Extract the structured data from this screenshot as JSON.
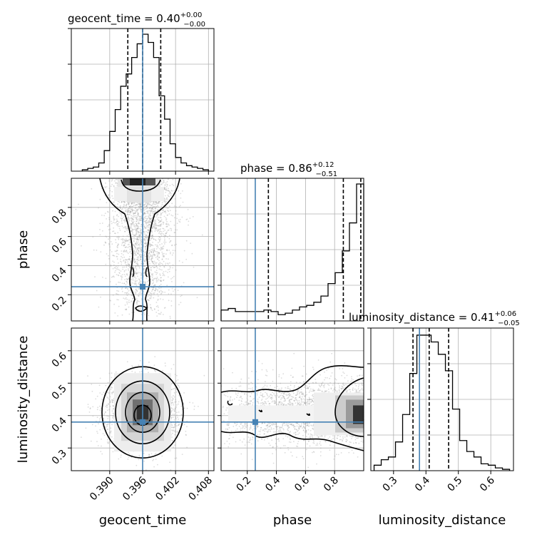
{
  "chart_data": {
    "type": "corner",
    "parameters": [
      "geocent_time",
      "phase",
      "luminosity_distance"
    ],
    "truths": {
      "geocent_time": 0.396,
      "phase": 0.255,
      "luminosity_distance": 0.38
    },
    "colors": {
      "truth": "#4682b4",
      "hist": "#000000",
      "grid": "#b0b0b0",
      "points": "#9a9a9a"
    },
    "titles": [
      {
        "param": "geocent_time",
        "base": "geocent_time = 0.40",
        "sup": "+0.00",
        "sub": "−0.00"
      },
      {
        "param": "phase",
        "base": "phase = 0.86",
        "sup": "+0.12",
        "sub": "−0.51"
      },
      {
        "param": "luminosity_distance",
        "base": "luminosity_distance = 0.41",
        "sup": "+0.06",
        "sub": "−0.05"
      }
    ],
    "quantiles": {
      "geocent_time": [
        0.3933,
        0.396,
        0.3993
      ],
      "phase": [
        0.345,
        0.86,
        0.98
      ],
      "luminosity_distance": [
        0.36,
        0.41,
        0.47
      ]
    },
    "axes": {
      "geocent_time": {
        "range": [
          0.383,
          0.409
        ],
        "ticks": [
          0.39,
          0.396,
          0.402,
          0.408
        ],
        "tick_labels": [
          "0.390",
          "0.396",
          "0.402",
          "0.408"
        ]
      },
      "phase": {
        "range": [
          0.02,
          1.0
        ],
        "ticks": [
          0.2,
          0.4,
          0.6,
          0.8
        ],
        "tick_labels": [
          "0.2",
          "0.4",
          "0.6",
          "0.8"
        ]
      },
      "luminosity_distance": {
        "range": [
          0.23,
          0.67
        ],
        "ticks": [
          0.3,
          0.4,
          0.5,
          0.6
        ],
        "tick_labels": [
          "0.3",
          "0.4",
          "0.5",
          "0.6"
        ]
      }
    },
    "hist_geocent_time": {
      "edges": [
        0.385,
        0.386,
        0.387,
        0.388,
        0.389,
        0.39,
        0.391,
        0.392,
        0.393,
        0.394,
        0.395,
        0.396,
        0.397,
        0.398,
        0.399,
        0.4,
        0.401,
        0.402,
        0.403,
        0.404,
        0.405,
        0.406,
        0.407,
        0.408
      ],
      "values": [
        0.01,
        0.02,
        0.03,
        0.06,
        0.15,
        0.29,
        0.45,
        0.62,
        0.71,
        0.83,
        0.93,
        1.0,
        0.94,
        0.83,
        0.55,
        0.38,
        0.2,
        0.1,
        0.06,
        0.04,
        0.03,
        0.02,
        0.01
      ]
    },
    "hist_phase": {
      "edges": [
        0.02,
        0.069,
        0.118,
        0.167,
        0.216,
        0.265,
        0.314,
        0.363,
        0.412,
        0.461,
        0.51,
        0.559,
        0.608,
        0.657,
        0.706,
        0.755,
        0.804,
        0.853,
        0.902,
        0.951,
        1.0
      ],
      "values": [
        0.07,
        0.08,
        0.06,
        0.06,
        0.06,
        0.06,
        0.07,
        0.06,
        0.04,
        0.05,
        0.07,
        0.09,
        0.1,
        0.12,
        0.16,
        0.24,
        0.31,
        0.45,
        0.63,
        0.88
      ]
    },
    "hist_luminosity_distance": {
      "edges": [
        0.24,
        0.262,
        0.284,
        0.306,
        0.328,
        0.35,
        0.372,
        0.394,
        0.416,
        0.438,
        0.46,
        0.482,
        0.504,
        0.526,
        0.548,
        0.57,
        0.592,
        0.614,
        0.636,
        0.658
      ],
      "values": [
        0.04,
        0.08,
        0.1,
        0.21,
        0.41,
        0.71,
        0.99,
        0.99,
        0.94,
        0.85,
        0.73,
        0.45,
        0.22,
        0.14,
        0.1,
        0.05,
        0.04,
        0.02,
        0.01
      ]
    },
    "histogram_peaks": {
      "geocent_time": 1.0,
      "phase": 0.88,
      "luminosity_distance": 1.0
    }
  }
}
